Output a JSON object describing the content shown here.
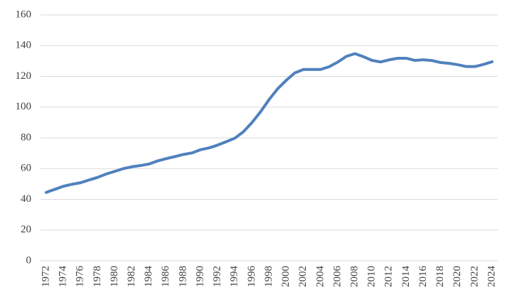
{
  "chart_data": {
    "type": "line",
    "x": [
      1972,
      1973,
      1974,
      1975,
      1976,
      1977,
      1978,
      1979,
      1980,
      1981,
      1982,
      1983,
      1984,
      1985,
      1986,
      1987,
      1988,
      1989,
      1990,
      1991,
      1992,
      1993,
      1994,
      1995,
      1996,
      1997,
      1998,
      1999,
      2000,
      2001,
      2002,
      2003,
      2004,
      2005,
      2006,
      2007,
      2008,
      2009,
      2010,
      2011,
      2012,
      2013,
      2014,
      2015,
      2016,
      2017,
      2018,
      2019,
      2020,
      2021,
      2022,
      2023,
      2024
    ],
    "series": [
      {
        "color": "#4f81bd",
        "values": [
          44.5,
          46.5,
          48.5,
          49.8,
          50.8,
          52.6,
          54.3,
          56.5,
          58.2,
          60,
          61.2,
          62,
          63,
          65,
          66.5,
          67.8,
          69.2,
          70.2,
          72.3,
          73.5,
          75.3,
          77.5,
          79.8,
          84,
          90,
          97,
          105,
          112,
          117.5,
          122.3,
          124.5,
          124.5,
          124.5,
          126.3,
          129.3,
          133,
          134.8,
          132.8,
          130.4,
          129.4,
          130.8,
          131.8,
          131.8,
          130.4,
          130.8,
          130.3,
          129,
          128.5,
          127.6,
          126.4,
          126.4,
          127.8,
          129.5
        ]
      }
    ],
    "xlim": [
      1972,
      2024
    ],
    "xticks": [
      1972,
      1974,
      1976,
      1978,
      1980,
      1982,
      1984,
      1986,
      1988,
      1990,
      1992,
      1994,
      1996,
      1998,
      2000,
      2002,
      2004,
      2006,
      2008,
      2010,
      2012,
      2014,
      2016,
      2018,
      2020,
      2022,
      2024
    ],
    "ylim": [
      0,
      160
    ],
    "yticks": [
      0,
      20,
      40,
      60,
      80,
      100,
      120,
      140,
      160
    ],
    "grid": true
  }
}
